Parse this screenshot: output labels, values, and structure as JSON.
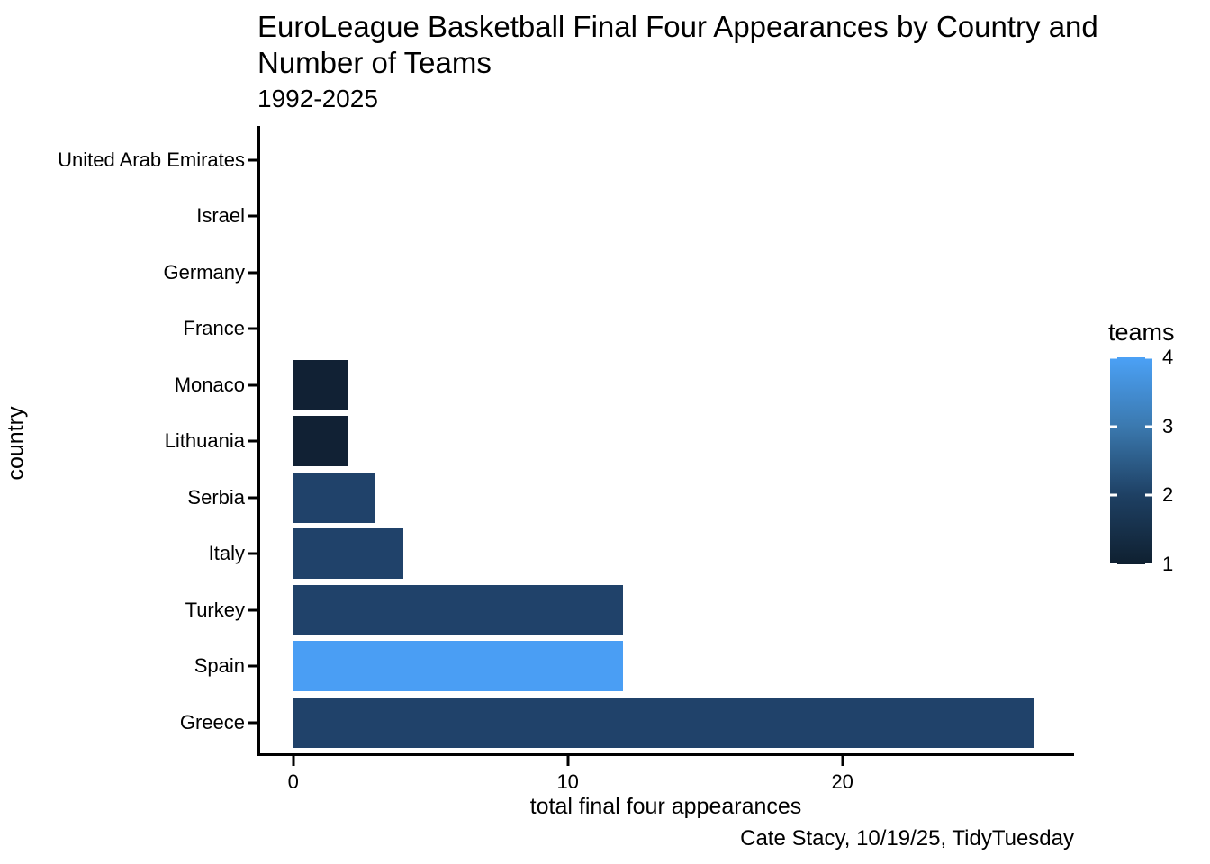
{
  "title": "EuroLeague Basketball Final Four Appearances by Country and Number of Teams",
  "subtitle": "1992-2025",
  "caption": "Cate Stacy, 10/19/25, TidyTuesday",
  "chart_data": {
    "type": "bar",
    "orientation": "horizontal",
    "title": "EuroLeague Basketball Final Four Appearances by Country and Number of Teams",
    "subtitle": "1992-2025",
    "caption": "Cate Stacy, 10/19/25, TidyTuesday",
    "xlabel": "total final four appearances",
    "ylabel": "country",
    "categories": [
      "United Arab Emirates",
      "Israel",
      "Germany",
      "France",
      "Monaco",
      "Lithuania",
      "Serbia",
      "Italy",
      "Turkey",
      "Spain",
      "Greece"
    ],
    "values": [
      0,
      0,
      0,
      0,
      2,
      2,
      3,
      4,
      12,
      12,
      27
    ],
    "teams": [
      null,
      null,
      null,
      null,
      1,
      1,
      2,
      2,
      2,
      4,
      2
    ],
    "xticks": [
      0,
      10,
      20
    ],
    "xlim": [
      0,
      28.4
    ],
    "grid": false,
    "background": "#FFFFFF",
    "axis_color": "#000000",
    "legend": {
      "title": "teams",
      "type": "colorbar",
      "position": "right",
      "min": 1,
      "max": 4,
      "ticks": [
        4,
        3,
        2,
        1
      ],
      "tick_labels": [
        "4",
        "3",
        "2",
        "1"
      ],
      "color_stops": {
        "1": "#112134",
        "2": "#20426A",
        "3": "#3B79AF",
        "4": "#4A9EF4"
      }
    }
  }
}
